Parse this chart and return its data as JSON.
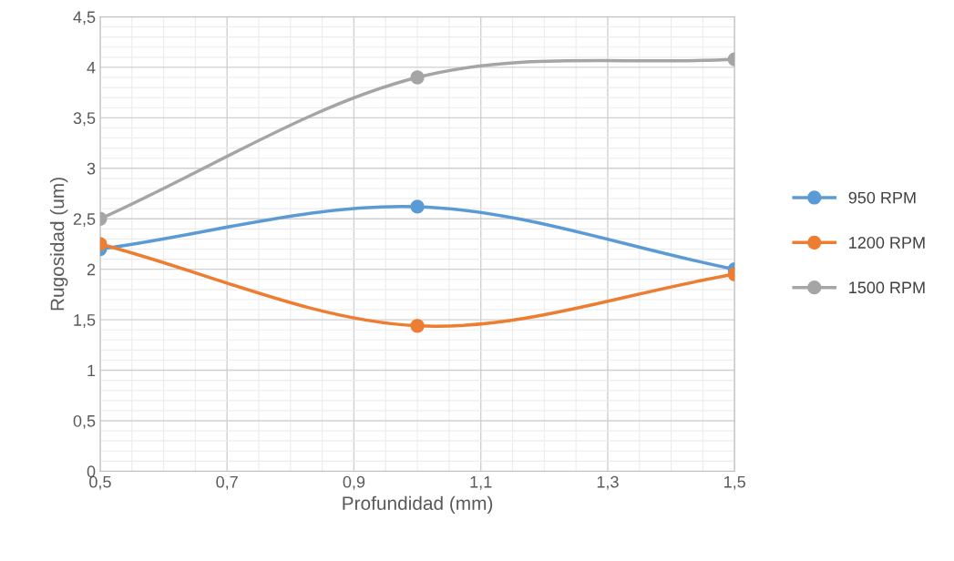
{
  "chart_data": {
    "type": "line",
    "xlabel": "Profundidad (mm)",
    "ylabel": "Rugosidad (um)",
    "x": [
      0.5,
      1.0,
      1.5
    ],
    "series": [
      {
        "name": "950 RPM",
        "color": "#5b9bd5",
        "values": [
          2.2,
          2.62,
          2.0
        ]
      },
      {
        "name": "1200 RPM",
        "color": "#ed7d31",
        "values": [
          2.25,
          1.44,
          1.95
        ]
      },
      {
        "name": "1500 RPM",
        "color": "#a5a5a5",
        "values": [
          2.5,
          3.9,
          4.08
        ]
      }
    ],
    "xlim": [
      0.5,
      1.5
    ],
    "ylim": [
      0,
      4.5
    ],
    "xticks": [
      {
        "value": 0.5,
        "label": "0,5"
      },
      {
        "value": 0.7,
        "label": "0,7"
      },
      {
        "value": 0.9,
        "label": "0,9"
      },
      {
        "value": 1.1,
        "label": "1,1"
      },
      {
        "value": 1.3,
        "label": "1,3"
      },
      {
        "value": 1.5,
        "label": "1,5"
      }
    ],
    "yticks": [
      0,
      {
        "value": 0.5,
        "label": "0,5"
      },
      1,
      {
        "value": 1.5,
        "label": "1,5"
      },
      2,
      {
        "value": 2.5,
        "label": "2,5"
      },
      3,
      {
        "value": 3.5,
        "label": "3,5"
      },
      4,
      {
        "value": 4.5,
        "label": "4,5"
      }
    ],
    "grid": true,
    "legend": "right",
    "marker": "circle",
    "line_style": "solid"
  }
}
